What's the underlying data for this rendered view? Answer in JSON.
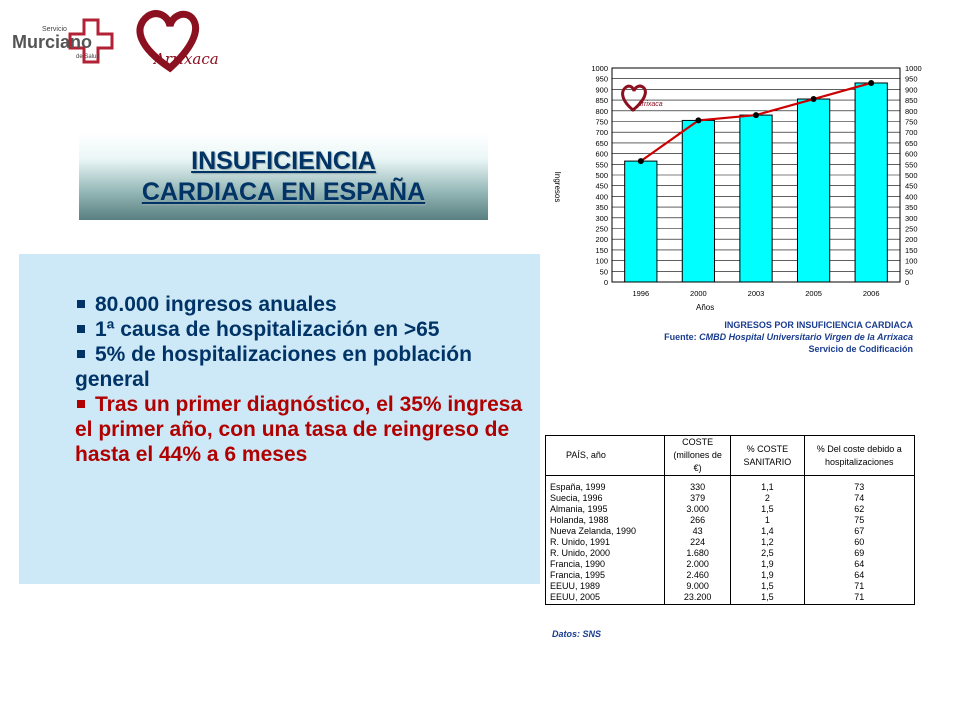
{
  "logos": {
    "sms": {
      "line1": "Servicio",
      "line2": "Murciano",
      "line3": "de Salud"
    },
    "arrixaca": {
      "text": "Arrixaca",
      "inset_text": "Arrixaca"
    }
  },
  "title": {
    "line1": "INSUFICIENCIA",
    "line2": "CARDIACA EN ESPAÑA"
  },
  "bullets": [
    {
      "text": "80.000 ingresos anuales",
      "color": "#003366"
    },
    {
      "text": "1ª causa de hospitalización en >65",
      "color": "#003366"
    },
    {
      "text": "5% de hospitalizaciones en población general",
      "color": "#003366"
    },
    {
      "text": "Tras un primer diagnóstico, el 35% ingresa el primer año, con una tasa de reingreso de hasta el 44% a 6 meses",
      "color": "#b00000"
    }
  ],
  "chart_data": {
    "type": "bar",
    "categories": [
      "1996",
      "2000",
      "2003",
      "2005",
      "2006"
    ],
    "values": [
      565,
      755,
      780,
      855,
      930
    ],
    "line_values": [
      565,
      755,
      780,
      855,
      930
    ],
    "xlabel": "Años",
    "ylabel": "Ingresos",
    "ylim": [
      0,
      1000
    ],
    "y_ticks": [
      0,
      50,
      100,
      150,
      200,
      250,
      300,
      350,
      400,
      450,
      500,
      550,
      600,
      650,
      700,
      750,
      800,
      850,
      900,
      950,
      1000
    ],
    "secondary_axis": true,
    "grid": true,
    "colors": {
      "bar": "#00ffff",
      "line": "#cc0000",
      "marker": "#000000"
    },
    "caption": {
      "line1": "INGRESOS POR INSUFICIENCIA CARDIACA",
      "source_label": "Fuente: ",
      "source": "CMBD Hospital Universitario Virgen de la Arrixaca",
      "line3": "Servicio de Codificación"
    }
  },
  "table": {
    "headers": [
      "PAÍS, año",
      "COSTE (millones de €)",
      "% COSTE SANITARIO",
      "% Del coste debido a hospitalizaciones"
    ],
    "rows": [
      [
        "España, 1999",
        "330",
        "1,1",
        "73"
      ],
      [
        "Suecia, 1996",
        "379",
        "2",
        "74"
      ],
      [
        "Almania, 1995",
        "3.000",
        "1,5",
        "62"
      ],
      [
        "Holanda, 1988",
        "266",
        "1",
        "75"
      ],
      [
        "Nueva Zelanda, 1990",
        "43",
        "1,4",
        "67"
      ],
      [
        "R. Unido, 1991",
        "224",
        "1,2",
        "60"
      ],
      [
        "R. Unido, 2000",
        "1.680",
        "2,5",
        "69"
      ],
      [
        "Francia, 1990",
        "2.000",
        "1,9",
        "64"
      ],
      [
        "Francia, 1995",
        "2.460",
        "1,9",
        "64"
      ],
      [
        "EEUU, 1989",
        "9.000",
        "1,5",
        "71"
      ],
      [
        "EEUU, 2005",
        "23.200",
        "1,5",
        "71"
      ]
    ],
    "source": "Datos: SNS"
  }
}
